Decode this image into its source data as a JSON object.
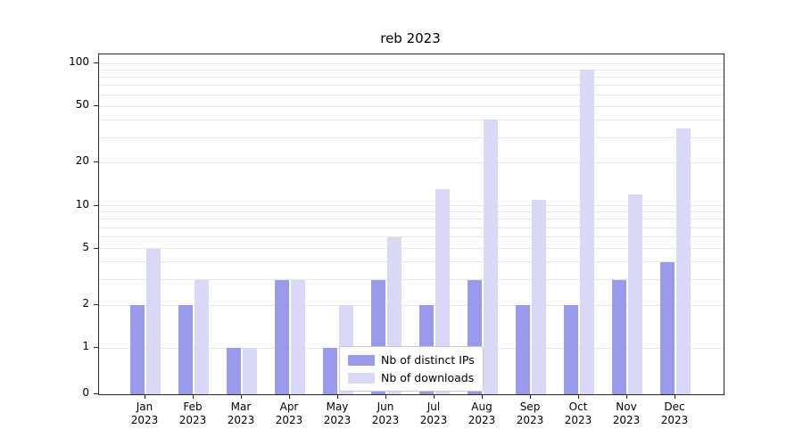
{
  "figure": {
    "background": "#ffffff"
  },
  "chart_data": {
    "type": "bar",
    "title": "reb 2023",
    "categories": [
      "Jan 2023",
      "Feb 2023",
      "Mar 2023",
      "Apr 2023",
      "May 2023",
      "Jun 2023",
      "Jul 2023",
      "Aug 2023",
      "Sep 2023",
      "Oct 2023",
      "Nov 2023",
      "Dec 2023"
    ],
    "month_labels": [
      "Jan",
      "Feb",
      "Mar",
      "Apr",
      "May",
      "Jun",
      "Jul",
      "Aug",
      "Sep",
      "Oct",
      "Nov",
      "Dec"
    ],
    "year_label": "2023",
    "series": [
      {
        "name": "Nb of distinct IPs",
        "color": "#9a9aec",
        "values": [
          2,
          2,
          1,
          3,
          1,
          3,
          2,
          3,
          2,
          2,
          3,
          4
        ]
      },
      {
        "name": "Nb of downloads",
        "color": "#d9d9f7",
        "values": [
          5,
          3,
          1,
          3,
          2,
          6,
          13,
          40,
          11,
          90,
          12,
          35
        ]
      }
    ],
    "yscale": "symlog",
    "ylim": [
      0,
      115
    ],
    "yticks": [
      0,
      1,
      2,
      5,
      10,
      20,
      50,
      100
    ],
    "grid_values": [
      1,
      2,
      3,
      4,
      5,
      6,
      7,
      8,
      9,
      10,
      20,
      30,
      40,
      50,
      60,
      70,
      80,
      90,
      100
    ],
    "grid_color": "#e6e6e6",
    "grid": "on",
    "legend_position": "lower center"
  }
}
